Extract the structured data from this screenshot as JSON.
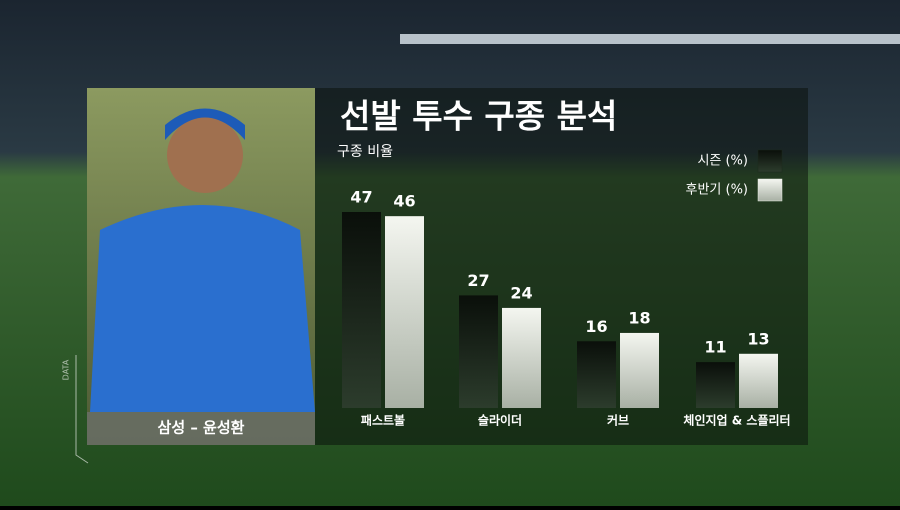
{
  "chart_data": {
    "type": "bar",
    "title": "선발 투수 구종 분석",
    "subtitle": "구종 비율",
    "categories": [
      "패스트볼",
      "슬라이더",
      "커브",
      "체인지업 & 스플리터"
    ],
    "series": [
      {
        "name": "시즌 (%)",
        "color": "#1c2a1c",
        "values": [
          47,
          27,
          16,
          11
        ]
      },
      {
        "name": "후반기 (%)",
        "color": "#e8ece4",
        "values": [
          46,
          24,
          18,
          13
        ]
      }
    ],
    "player": "삼성 – 윤성환",
    "side_label": "DATA"
  }
}
